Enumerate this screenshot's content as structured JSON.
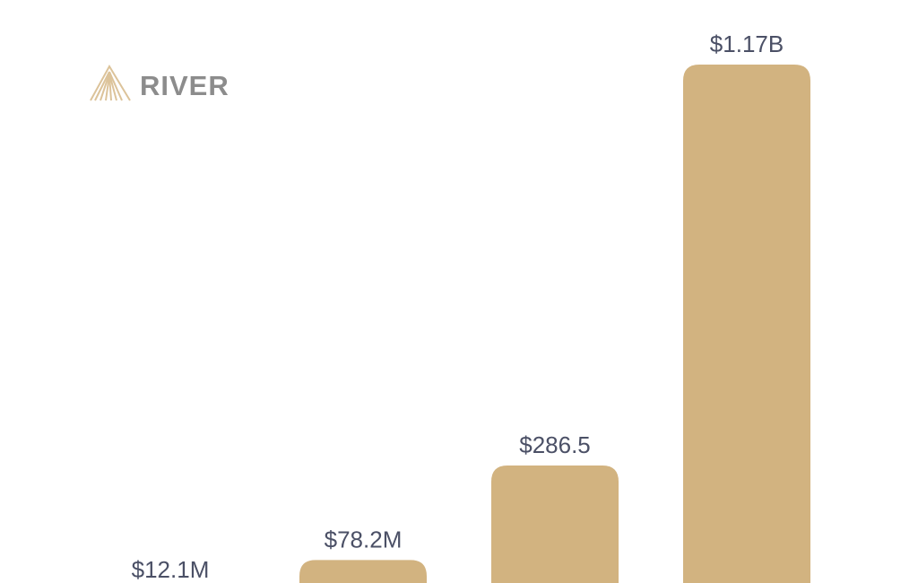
{
  "logo": "RIVER",
  "chart_data": {
    "type": "bar",
    "categories": [
      null,
      null,
      null,
      null
    ],
    "values": [
      12.1,
      78.2,
      286.5,
      1170
    ],
    "value_labels": [
      "$12.1M",
      "$78.2M",
      "$286.5",
      "$1.17B"
    ],
    "color": "#d2b380"
  }
}
